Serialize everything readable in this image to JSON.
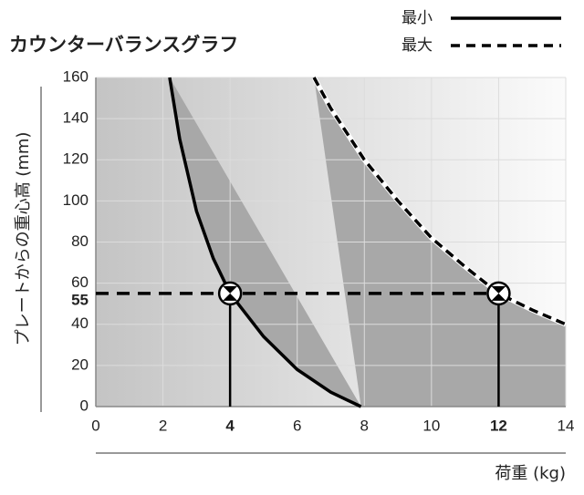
{
  "chart_data": {
    "type": "line",
    "title": "カウンターバランスグラフ",
    "x_label": "荷重 (kg)",
    "y_label": "プレートからの重心高 (mm)",
    "xlim": [
      0,
      14
    ],
    "ylim": [
      0,
      160
    ],
    "xticks": [
      0,
      2,
      4,
      6,
      8,
      10,
      12,
      14
    ],
    "yticks": [
      0,
      20,
      40,
      60,
      80,
      100,
      120,
      140,
      160
    ],
    "grid": true,
    "series": [
      {
        "name": "最小",
        "color": "#000000",
        "dash": false,
        "x": [
          2.2,
          2.5,
          3,
          3.5,
          4,
          5,
          6,
          7,
          7.9
        ],
        "values": [
          160,
          130,
          95,
          72,
          55,
          34,
          18,
          7,
          0
        ]
      },
      {
        "name": "最大",
        "color": "#000000",
        "dash": true,
        "x": [
          6.5,
          7,
          8,
          9,
          10,
          11,
          12,
          13,
          14
        ],
        "values": [
          160,
          145,
          120,
          100,
          82,
          68,
          55,
          47,
          40
        ]
      }
    ],
    "reference": {
      "y": 55,
      "x": [
        4,
        12
      ]
    }
  }
}
